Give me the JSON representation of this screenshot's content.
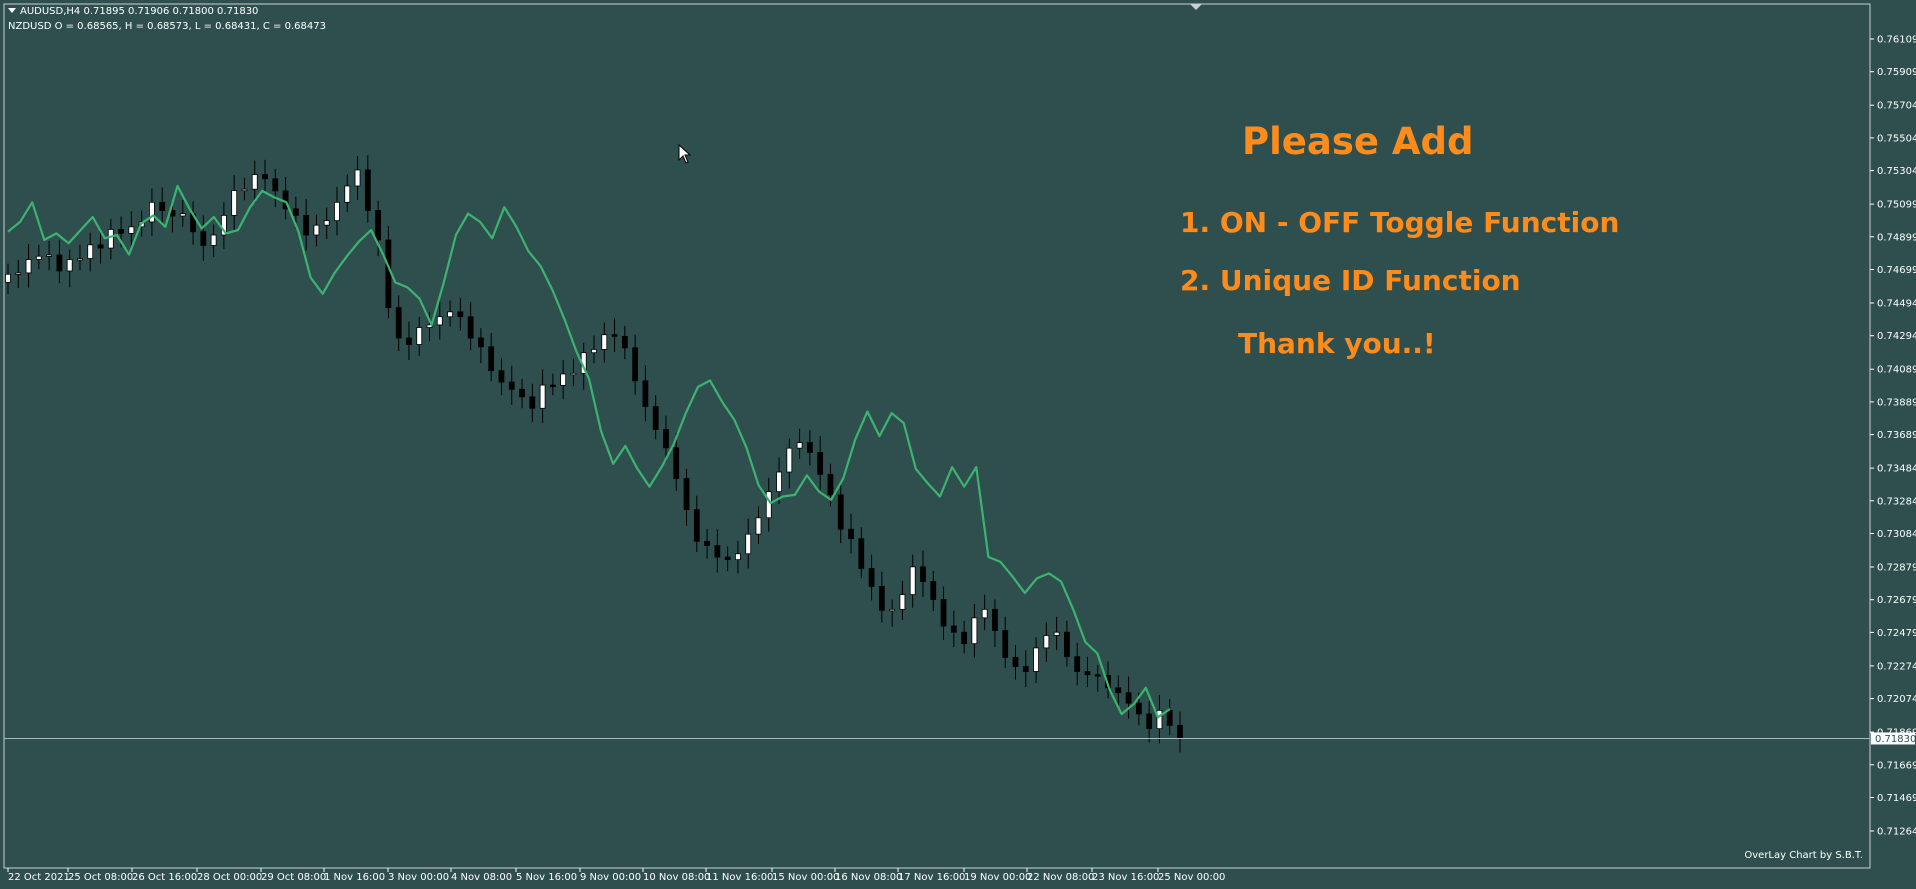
{
  "chart": {
    "symbol_line": "AUDUSD,H4  0.71895 0.71906 0.71800 0.71830",
    "overlay_line": "NZDUSD O = 0.68565, H = 0.68573, L = 0.68431, C = 0.68473",
    "current_price_label": "0.71830",
    "credit": "OverLay Chart by S.B.T.",
    "colors": {
      "background": "#2f4f4f",
      "overlay_line": "#3cb371",
      "bull_candle": "#ffffff",
      "bear_candle": "#000000",
      "note_text": "#ff8c1a",
      "axis": "#ffffff"
    }
  },
  "note": {
    "title": "Please Add",
    "item_1": "1. ON - OFF Toggle Function",
    "item_2": "2. Unique ID Function",
    "thanks": "Thank you..!"
  },
  "icons": {
    "cursor": "mouse-pointer-icon",
    "menu": "dropdown-arrow-icon"
  },
  "chart_data": {
    "type": "candlestick",
    "y_ticks": [
      "0.76109",
      "0.75909",
      "0.75704",
      "0.75504",
      "0.75304",
      "0.75099",
      "0.74899",
      "0.74699",
      "0.74494",
      "0.74294",
      "0.74089",
      "0.73889",
      "0.73689",
      "0.73484",
      "0.73284",
      "0.73084",
      "0.72879",
      "0.72679",
      "0.72479",
      "0.72274",
      "0.72074",
      "0.71869",
      "0.71669",
      "0.71469",
      "0.71264"
    ],
    "x_ticks": [
      "22 Oct 2021",
      "25 Oct 08:00",
      "26 Oct 16:00",
      "28 Oct 00:00",
      "29 Oct 08:00",
      "1 Nov 16:00",
      "3 Nov 00:00",
      "4 Nov 08:00",
      "5 Nov 16:00",
      "9 Nov 00:00",
      "10 Nov 08:00",
      "11 Nov 16:00",
      "15 Nov 00:00",
      "16 Nov 08:00",
      "17 Nov 16:00",
      "19 Nov 00:00",
      "22 Nov 08:00",
      "23 Nov 16:00",
      "25 Nov 00:00"
    ],
    "ylim": [
      0.7115,
      0.7625
    ],
    "close_path": [
      0.7467,
      0.7472,
      0.7476,
      0.7478,
      0.7474,
      0.7469,
      0.7476,
      0.7482,
      0.7485,
      0.7483,
      0.7489,
      0.7492,
      0.7496,
      0.7502,
      0.7511,
      0.7506,
      0.7499,
      0.7504,
      0.7493,
      0.7487,
      0.7491,
      0.7503,
      0.7511,
      0.7519,
      0.7528,
      0.7532,
      0.7518,
      0.7507,
      0.7497,
      0.7491,
      0.7497,
      0.7504,
      0.7511,
      0.7521,
      0.7526,
      0.7506,
      0.7488,
      0.7452,
      0.7428,
      0.7424,
      0.7429,
      0.7436,
      0.7441,
      0.7447,
      0.7441,
      0.7428,
      0.7419,
      0.7408,
      0.7401,
      0.7399,
      0.7392,
      0.7385,
      0.7392,
      0.7399,
      0.7406,
      0.7413,
      0.7419,
      0.7421,
      0.7424,
      0.7429,
      0.7422,
      0.7406,
      0.7386,
      0.7372,
      0.7356,
      0.7342,
      0.7323,
      0.7309,
      0.7301,
      0.7294,
      0.7287,
      0.7296,
      0.7308,
      0.7321,
      0.7334,
      0.7346,
      0.7357,
      0.7364,
      0.7358,
      0.7347,
      0.7332,
      0.7311,
      0.7298,
      0.7287,
      0.7276,
      0.7268,
      0.7262,
      0.7271,
      0.7282,
      0.7279,
      0.7268,
      0.7256,
      0.7248,
      0.7241,
      0.7252,
      0.7262,
      0.7249,
      0.7238,
      0.7227,
      0.7224,
      0.7233,
      0.7246,
      0.7248,
      0.7236,
      0.7224,
      0.7222,
      0.7218,
      0.7214,
      0.7211,
      0.7207,
      0.7198,
      0.7189,
      0.7193,
      0.7191,
      0.7183
    ],
    "series": [
      {
        "name": "AUDUSD,H4",
        "values": "candles (close path above)"
      },
      {
        "name": "NZDUSD",
        "values": [
          0.7493,
          0.7499,
          0.7511,
          0.7488,
          0.7492,
          0.7486,
          0.7494,
          0.7502,
          0.7489,
          0.7491,
          0.7479,
          0.7498,
          0.7503,
          0.7496,
          0.7521,
          0.7507,
          0.7495,
          0.7502,
          0.7492,
          0.7494,
          0.7508,
          0.7518,
          0.7514,
          0.7511,
          0.7493,
          0.7465,
          0.7455,
          0.7468,
          0.7478,
          0.7487,
          0.7494,
          0.7479,
          0.7462,
          0.7459,
          0.7452,
          0.7436,
          0.7462,
          0.7491,
          0.7504,
          0.7499,
          0.7489,
          0.7508,
          0.7496,
          0.7481,
          0.7472,
          0.7457,
          0.7439,
          0.7419,
          0.7403,
          0.7371,
          0.7351,
          0.7362,
          0.7348,
          0.7337,
          0.7349,
          0.7363,
          0.7382,
          0.7398,
          0.7402,
          0.7389,
          0.7378,
          0.7361,
          0.7338,
          0.7327,
          0.7331,
          0.7332,
          0.7344,
          0.7334,
          0.7329,
          0.7342,
          0.7366,
          0.7383,
          0.7368,
          0.7382,
          0.7376,
          0.7348,
          0.7339,
          0.7331,
          0.7349,
          0.7337,
          0.7349,
          0.7294,
          0.7291,
          0.7282,
          0.7272,
          0.7281,
          0.7284,
          0.7279,
          0.7262,
          0.7242,
          0.7235,
          0.7213,
          0.7198,
          0.7204,
          0.7214,
          0.7196,
          0.7201
        ]
      }
    ],
    "grid": false
  }
}
